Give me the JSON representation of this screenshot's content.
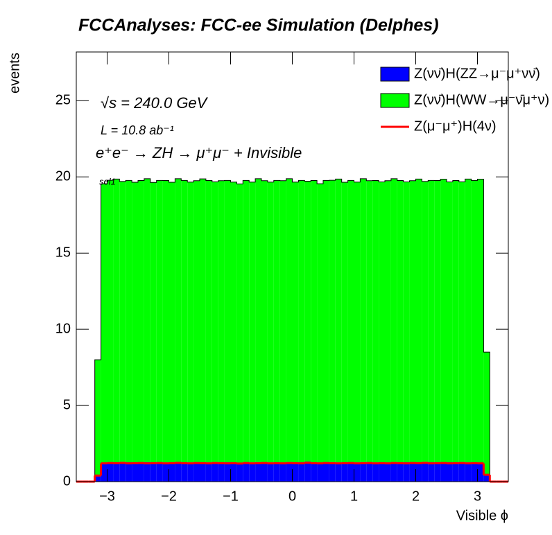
{
  "chart_data": {
    "type": "stacked-histogram",
    "title": "FCCAnalyses: FCC-ee Simulation (Delphes)",
    "x_label": "Visible ϕ",
    "y_label": "events",
    "annotations": [
      "√s = 240.0 GeV",
      "L = 10.8 ab⁻¹",
      "e⁺e⁻ → ZH → μ⁺μ⁻ + Invisible",
      "sel1"
    ],
    "bins": [
      -3.5,
      -3.4,
      -3.3,
      -3.2,
      -3.1,
      -3.0,
      -2.9,
      -2.8,
      -2.7,
      -2.6,
      -2.5,
      -2.4,
      -2.3,
      -2.2,
      -2.1,
      -2.0,
      -1.9,
      -1.8,
      -1.7,
      -1.6,
      -1.5,
      -1.4,
      -1.3,
      -1.2,
      -1.1,
      -1.0,
      -0.9,
      -0.8,
      -0.7,
      -0.6,
      -0.5,
      -0.4,
      -0.3,
      -0.2,
      -0.1,
      0.0,
      0.1,
      0.2,
      0.3,
      0.4,
      0.5,
      0.6,
      0.7,
      0.8,
      0.9,
      1.0,
      1.1,
      1.2,
      1.3,
      1.4,
      1.5,
      1.6,
      1.7,
      1.8,
      1.9,
      2.0,
      2.1,
      2.2,
      2.3,
      2.4,
      2.5,
      2.6,
      2.7,
      2.8,
      2.9,
      3.0,
      3.1,
      3.2,
      3.3,
      3.4,
      3.5
    ],
    "series": [
      {
        "name": "Z(νν̄)H(ZZ→μ⁻μ⁺νν̄)",
        "color": "#0000ff",
        "stacked": true,
        "values": [
          0,
          0,
          0,
          0.45,
          1.25,
          1.28,
          1.26,
          1.3,
          1.27,
          1.25,
          1.26,
          1.28,
          1.24,
          1.27,
          1.26,
          1.25,
          1.28,
          1.27,
          1.26,
          1.25,
          1.27,
          1.26,
          1.28,
          1.25,
          1.27,
          1.26,
          1.24,
          1.27,
          1.26,
          1.28,
          1.25,
          1.26,
          1.27,
          1.25,
          1.28,
          1.26,
          1.27,
          1.32,
          1.26,
          1.25,
          1.27,
          1.28,
          1.26,
          1.25,
          1.27,
          1.26,
          1.28,
          1.25,
          1.26,
          1.27,
          1.25,
          1.28,
          1.26,
          1.27,
          1.25,
          1.26,
          1.3,
          1.27,
          1.26,
          1.25,
          1.27,
          1.26,
          1.28,
          1.26,
          1.27,
          1.25,
          0.5,
          0,
          0,
          0
        ]
      },
      {
        "name": "Z(νν̄)H(WW→μ⁻ν̄μ⁺ν)",
        "color": "#00ff00",
        "stacked": true,
        "values": [
          0,
          0,
          0,
          7.55,
          18.3,
          18.5,
          18.6,
          18.4,
          18.5,
          18.4,
          18.5,
          18.6,
          18.4,
          18.5,
          18.5,
          18.4,
          18.6,
          18.5,
          18.4,
          18.5,
          18.6,
          18.5,
          18.4,
          18.5,
          18.5,
          18.4,
          18.3,
          18.5,
          18.4,
          18.6,
          18.5,
          18.4,
          18.5,
          18.5,
          18.6,
          18.4,
          18.5,
          18.4,
          18.5,
          18.3,
          18.5,
          18.5,
          18.6,
          18.4,
          18.5,
          18.4,
          18.6,
          18.5,
          18.5,
          18.4,
          18.5,
          18.6,
          18.5,
          18.4,
          18.5,
          18.6,
          18.4,
          18.5,
          18.5,
          18.6,
          18.4,
          18.5,
          18.4,
          18.6,
          18.5,
          18.6,
          8.0,
          0,
          0,
          0
        ]
      },
      {
        "name": "Z(μ⁻μ⁺)H(4ν)",
        "color": "#ff0000",
        "stacked": false,
        "values": [
          0,
          0,
          0,
          0.4,
          1.2,
          1.22,
          1.21,
          1.23,
          1.2,
          1.21,
          1.22,
          1.2,
          1.21,
          1.22,
          1.2,
          1.21,
          1.23,
          1.21,
          1.2,
          1.22,
          1.21,
          1.2,
          1.22,
          1.21,
          1.2,
          1.21,
          1.19,
          1.22,
          1.2,
          1.21,
          1.22,
          1.2,
          1.21,
          1.2,
          1.22,
          1.21,
          1.2,
          1.24,
          1.21,
          1.2,
          1.22,
          1.21,
          1.2,
          1.21,
          1.22,
          1.2,
          1.21,
          1.22,
          1.2,
          1.21,
          1.2,
          1.22,
          1.21,
          1.2,
          1.22,
          1.21,
          1.23,
          1.2,
          1.21,
          1.22,
          1.2,
          1.21,
          1.22,
          1.2,
          1.21,
          1.2,
          0.45,
          0,
          0,
          0
        ]
      }
    ],
    "xlim": [
      -3.5,
      3.5
    ],
    "ylim": [
      0,
      28.2
    ],
    "xticks": [
      {
        "value": -3,
        "label": "−3"
      },
      {
        "value": -2,
        "label": "−2"
      },
      {
        "value": -1,
        "label": "−1"
      },
      0,
      1,
      2,
      3
    ],
    "yticks": [
      0,
      5,
      10,
      15,
      20,
      25
    ],
    "legend": "upper-right"
  }
}
